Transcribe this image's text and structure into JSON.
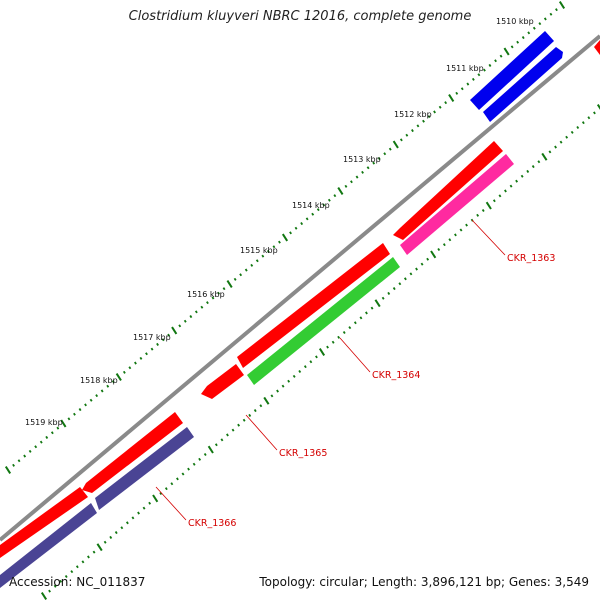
{
  "title": "Clostridium kluyveri NBRC 12016, complete genome",
  "footer": {
    "accession": "Accession: NC_011837",
    "summary": "Topology: circular; Length: 3,896,121 bp; Genes: 3,549"
  },
  "ruler": [
    {
      "label": "1510 kbp",
      "kbp": 1510
    },
    {
      "label": "1511 kbp",
      "kbp": 1511
    },
    {
      "label": "1512 kbp",
      "kbp": 1512
    },
    {
      "label": "1513 kbp",
      "kbp": 1513
    },
    {
      "label": "1514 kbp",
      "kbp": 1514
    },
    {
      "label": "1515 kbp",
      "kbp": 1515
    },
    {
      "label": "1516 kbp",
      "kbp": 1516
    },
    {
      "label": "1517 kbp",
      "kbp": 1517
    },
    {
      "label": "1518 kbp",
      "kbp": 1518
    },
    {
      "label": "1519 kbp",
      "kbp": 1519
    }
  ],
  "gene_labels": [
    "CKR_1363",
    "CKR_1364",
    "CKR_1365",
    "CKR_1366"
  ],
  "colors": {
    "backbone": "#8a8a8a",
    "red": "#ff0000",
    "blue": "#0000ee",
    "pink": "#ff2aa0",
    "green": "#33cc33",
    "purple": "#4a4494",
    "ticks": "#117711",
    "label": "#d40000"
  }
}
